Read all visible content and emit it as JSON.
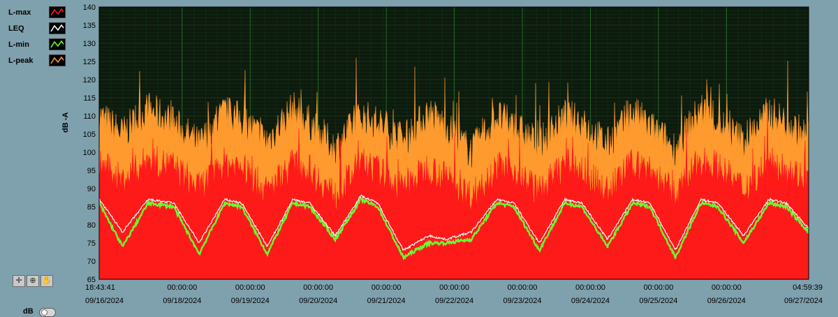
{
  "legend": [
    {
      "label": "L-max",
      "color": "#ff1a1a"
    },
    {
      "label": "LEQ",
      "color": "#ffffff"
    },
    {
      "label": "L-min",
      "color": "#66ff33"
    },
    {
      "label": "L-peak",
      "color": "#ff9a2e"
    }
  ],
  "tools": [
    {
      "name": "cursor-move-tool-icon",
      "glyph": "✛"
    },
    {
      "name": "zoom-tool-icon",
      "glyph": "⊕"
    },
    {
      "name": "pan-hand-tool-icon",
      "glyph": "✋"
    }
  ],
  "db_toggle_label": "dB",
  "chart_data": {
    "type": "area",
    "ylabel": "dB -A",
    "xlabel": "",
    "ylim": [
      65,
      140
    ],
    "y_ticks": [
      65,
      70,
      75,
      80,
      85,
      90,
      95,
      100,
      105,
      110,
      115,
      120,
      125,
      130,
      135,
      140
    ],
    "grid": true,
    "background": "#0d1a0d",
    "x_ticks": [
      {
        "time": "18:43:41",
        "date": "09/16/2024"
      },
      {
        "time": "00:00:00",
        "date": "09/18/2024"
      },
      {
        "time": "00:00:00",
        "date": "09/19/2024"
      },
      {
        "time": "00:00:00",
        "date": "09/20/2024"
      },
      {
        "time": "00:00:00",
        "date": "09/21/2024"
      },
      {
        "time": "00:00:00",
        "date": "09/22/2024"
      },
      {
        "time": "00:00:00",
        "date": "09/23/2024"
      },
      {
        "time": "00:00:00",
        "date": "09/24/2024"
      },
      {
        "time": "00:00:00",
        "date": "09/25/2024"
      },
      {
        "time": "00:00:00",
        "date": "09/26/2024"
      },
      {
        "time": "04:59:39",
        "date": "09/27/2024"
      }
    ],
    "series": [
      {
        "name": "L-peak",
        "color": "#ff9a2e",
        "points": [
          [
            "09/16/2024 18:43:41",
            110
          ],
          [
            "09/17/2024 03:00",
            105
          ],
          [
            "09/17/2024 12:00",
            112
          ],
          [
            "09/17/2024 21:00",
            108
          ],
          [
            "09/18/2024 06:00",
            102
          ],
          [
            "09/18/2024 15:00",
            111
          ],
          [
            "09/18/2024 21:00",
            109
          ],
          [
            "09/19/2024 06:00",
            103
          ],
          [
            "09/19/2024 15:00",
            112
          ],
          [
            "09/19/2024 21:00",
            108
          ],
          [
            "09/20/2024 06:00",
            101
          ],
          [
            "09/20/2024 15:00",
            110
          ],
          [
            "09/20/2024 21:00",
            108
          ],
          [
            "09/21/2024 06:00",
            103
          ],
          [
            "09/21/2024 15:00",
            111
          ],
          [
            "09/21/2024 21:00",
            107
          ],
          [
            "09/22/2024 06:00",
            100
          ],
          [
            "09/22/2024 15:00",
            110
          ],
          [
            "09/22/2024 21:00",
            107
          ],
          [
            "09/23/2024 06:00",
            102
          ],
          [
            "09/23/2024 15:00",
            110
          ],
          [
            "09/23/2024 21:00",
            108
          ],
          [
            "09/24/2024 06:00",
            102
          ],
          [
            "09/24/2024 15:00",
            111
          ],
          [
            "09/24/2024 21:00",
            107
          ],
          [
            "09/25/2024 06:00",
            101
          ],
          [
            "09/25/2024 15:00",
            112
          ],
          [
            "09/25/2024 21:00",
            108
          ],
          [
            "09/26/2024 06:00",
            103
          ],
          [
            "09/26/2024 15:00",
            111
          ],
          [
            "09/26/2024 21:00",
            108
          ],
          [
            "09/27/2024 04:59:39",
            104
          ]
        ]
      },
      {
        "name": "L-max",
        "color": "#ff1a1a",
        "points": [
          [
            "09/16/2024 18:43:41",
            97
          ],
          [
            "09/17/2024 03:00",
            92
          ],
          [
            "09/17/2024 12:00",
            98
          ],
          [
            "09/17/2024 21:00",
            96
          ],
          [
            "09/18/2024 06:00",
            90
          ],
          [
            "09/18/2024 15:00",
            97
          ],
          [
            "09/18/2024 21:00",
            96
          ],
          [
            "09/19/2024 06:00",
            89
          ],
          [
            "09/19/2024 15:00",
            97
          ],
          [
            "09/19/2024 21:00",
            95
          ],
          [
            "09/20/2024 06:00",
            88
          ],
          [
            "09/20/2024 15:00",
            97
          ],
          [
            "09/20/2024 21:00",
            95
          ],
          [
            "09/21/2024 06:00",
            90
          ],
          [
            "09/21/2024 15:00",
            96
          ],
          [
            "09/21/2024 21:00",
            93
          ],
          [
            "09/22/2024 06:00",
            88
          ],
          [
            "09/22/2024 15:00",
            96
          ],
          [
            "09/22/2024 21:00",
            95
          ],
          [
            "09/23/2024 06:00",
            89
          ],
          [
            "09/23/2024 15:00",
            97
          ],
          [
            "09/23/2024 21:00",
            95
          ],
          [
            "09/24/2024 06:00",
            89
          ],
          [
            "09/24/2024 15:00",
            97
          ],
          [
            "09/24/2024 21:00",
            95
          ],
          [
            "09/25/2024 06:00",
            88
          ],
          [
            "09/25/2024 15:00",
            98
          ],
          [
            "09/25/2024 21:00",
            96
          ],
          [
            "09/26/2024 06:00",
            90
          ],
          [
            "09/26/2024 15:00",
            97
          ],
          [
            "09/26/2024 21:00",
            96
          ],
          [
            "09/27/2024 04:59:39",
            92
          ]
        ]
      },
      {
        "name": "LEQ",
        "color": "#ffffff",
        "points": [
          [
            "09/16/2024 18:43:41",
            87
          ],
          [
            "09/17/2024 03:00",
            78
          ],
          [
            "09/17/2024 12:00",
            87
          ],
          [
            "09/17/2024 21:00",
            86
          ],
          [
            "09/18/2024 06:00",
            75
          ],
          [
            "09/18/2024 15:00",
            87
          ],
          [
            "09/18/2024 21:00",
            86
          ],
          [
            "09/19/2024 06:00",
            74
          ],
          [
            "09/19/2024 15:00",
            87
          ],
          [
            "09/19/2024 21:00",
            86
          ],
          [
            "09/20/2024 06:00",
            77
          ],
          [
            "09/20/2024 15:00",
            88
          ],
          [
            "09/20/2024 21:00",
            86
          ],
          [
            "09/21/2024 06:00",
            73
          ],
          [
            "09/21/2024 15:00",
            77
          ],
          [
            "09/21/2024 21:00",
            76
          ],
          [
            "09/22/2024 06:00",
            78
          ],
          [
            "09/22/2024 15:00",
            87
          ],
          [
            "09/22/2024 21:00",
            86
          ],
          [
            "09/23/2024 06:00",
            75
          ],
          [
            "09/23/2024 15:00",
            87
          ],
          [
            "09/23/2024 21:00",
            86
          ],
          [
            "09/24/2024 06:00",
            76
          ],
          [
            "09/24/2024 15:00",
            87
          ],
          [
            "09/24/2024 21:00",
            86
          ],
          [
            "09/25/2024 06:00",
            73
          ],
          [
            "09/25/2024 15:00",
            87
          ],
          [
            "09/25/2024 21:00",
            86
          ],
          [
            "09/26/2024 06:00",
            77
          ],
          [
            "09/26/2024 15:00",
            87
          ],
          [
            "09/26/2024 21:00",
            86
          ],
          [
            "09/27/2024 04:59:39",
            79
          ]
        ]
      },
      {
        "name": "L-min",
        "color": "#66ff33",
        "points": [
          [
            "09/16/2024 18:43:41",
            86
          ],
          [
            "09/17/2024 03:00",
            74
          ],
          [
            "09/17/2024 12:00",
            86
          ],
          [
            "09/17/2024 21:00",
            85
          ],
          [
            "09/18/2024 06:00",
            72
          ],
          [
            "09/18/2024 15:00",
            86
          ],
          [
            "09/18/2024 21:00",
            85
          ],
          [
            "09/19/2024 06:00",
            72
          ],
          [
            "09/19/2024 15:00",
            86
          ],
          [
            "09/19/2024 21:00",
            85
          ],
          [
            "09/20/2024 06:00",
            76
          ],
          [
            "09/20/2024 15:00",
            87
          ],
          [
            "09/20/2024 21:00",
            85
          ],
          [
            "09/21/2024 06:00",
            71
          ],
          [
            "09/21/2024 15:00",
            75
          ],
          [
            "09/21/2024 21:00",
            75
          ],
          [
            "09/22/2024 06:00",
            76
          ],
          [
            "09/22/2024 15:00",
            86
          ],
          [
            "09/22/2024 21:00",
            85
          ],
          [
            "09/23/2024 06:00",
            73
          ],
          [
            "09/23/2024 15:00",
            86
          ],
          [
            "09/23/2024 21:00",
            85
          ],
          [
            "09/24/2024 06:00",
            74
          ],
          [
            "09/24/2024 15:00",
            86
          ],
          [
            "09/24/2024 21:00",
            85
          ],
          [
            "09/25/2024 06:00",
            71
          ],
          [
            "09/25/2024 15:00",
            86
          ],
          [
            "09/25/2024 21:00",
            85
          ],
          [
            "09/26/2024 06:00",
            75
          ],
          [
            "09/26/2024 15:00",
            86
          ],
          [
            "09/26/2024 21:00",
            85
          ],
          [
            "09/27/2024 04:59:39",
            78
          ]
        ]
      }
    ]
  }
}
